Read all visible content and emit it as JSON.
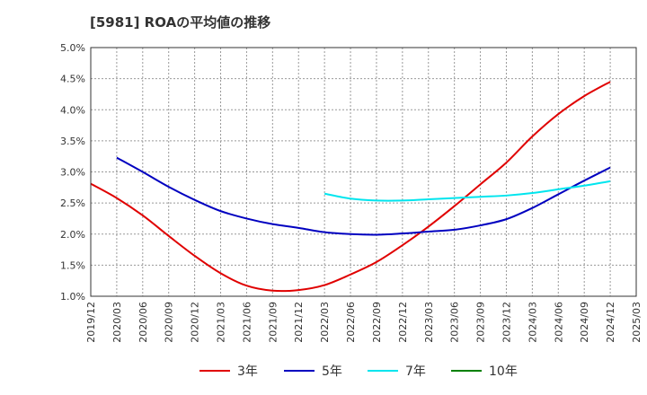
{
  "chart_data": {
    "type": "line",
    "title": "[5981]  ROAの平均値の推移",
    "xlabel": "",
    "ylabel": "",
    "x": [
      "2019/12",
      "2020/03",
      "2020/06",
      "2020/09",
      "2020/12",
      "2021/03",
      "2021/06",
      "2021/09",
      "2021/12",
      "2022/03",
      "2022/06",
      "2022/09",
      "2022/12",
      "2023/03",
      "2023/06",
      "2023/09",
      "2023/12",
      "2024/03",
      "2024/06",
      "2024/09",
      "2024/12",
      "2025/03"
    ],
    "x_tick_labels": [
      "2019/12",
      "2020/03",
      "2020/06",
      "2020/09",
      "2020/12",
      "2021/03",
      "2021/06",
      "2021/09",
      "2021/12",
      "2022/03",
      "2022/06",
      "2022/09",
      "2022/12",
      "2023/03",
      "2023/06",
      "2023/09",
      "2023/12",
      "2024/03",
      "2024/06",
      "2024/09",
      "2024/12",
      "2025/03"
    ],
    "ylim": [
      1.0,
      5.0
    ],
    "y_ticks": [
      1.0,
      1.5,
      2.0,
      2.5,
      3.0,
      3.5,
      4.0,
      4.5,
      5.0
    ],
    "y_tick_labels": [
      "1.0%",
      "1.5%",
      "2.0%",
      "2.5%",
      "3.0%",
      "3.5%",
      "4.0%",
      "4.5%",
      "5.0%"
    ],
    "grid": true,
    "legend_position": "bottom",
    "series": [
      {
        "name": "3年",
        "color": "#e00000",
        "values": [
          2.81,
          2.58,
          2.3,
          1.97,
          1.65,
          1.37,
          1.17,
          1.09,
          1.1,
          1.18,
          1.35,
          1.55,
          1.82,
          2.12,
          2.45,
          2.8,
          3.15,
          3.57,
          3.93,
          4.22,
          4.45,
          null
        ]
      },
      {
        "name": "5年",
        "color": "#0000c0",
        "values": [
          null,
          3.23,
          3.0,
          2.76,
          2.55,
          2.37,
          2.25,
          2.16,
          2.1,
          2.03,
          2.0,
          1.99,
          2.01,
          2.04,
          2.07,
          2.14,
          2.24,
          2.42,
          2.64,
          2.86,
          3.07,
          null
        ]
      },
      {
        "name": "7年",
        "color": "#00e5ee",
        "values": [
          null,
          null,
          null,
          null,
          null,
          null,
          null,
          null,
          null,
          2.65,
          2.57,
          2.54,
          2.54,
          2.56,
          2.58,
          2.6,
          2.62,
          2.66,
          2.72,
          2.78,
          2.85,
          null
        ]
      },
      {
        "name": "10年",
        "color": "#008000",
        "values": [
          null,
          null,
          null,
          null,
          null,
          null,
          null,
          null,
          null,
          null,
          null,
          null,
          null,
          null,
          null,
          null,
          null,
          null,
          null,
          null,
          null,
          null
        ]
      }
    ]
  }
}
